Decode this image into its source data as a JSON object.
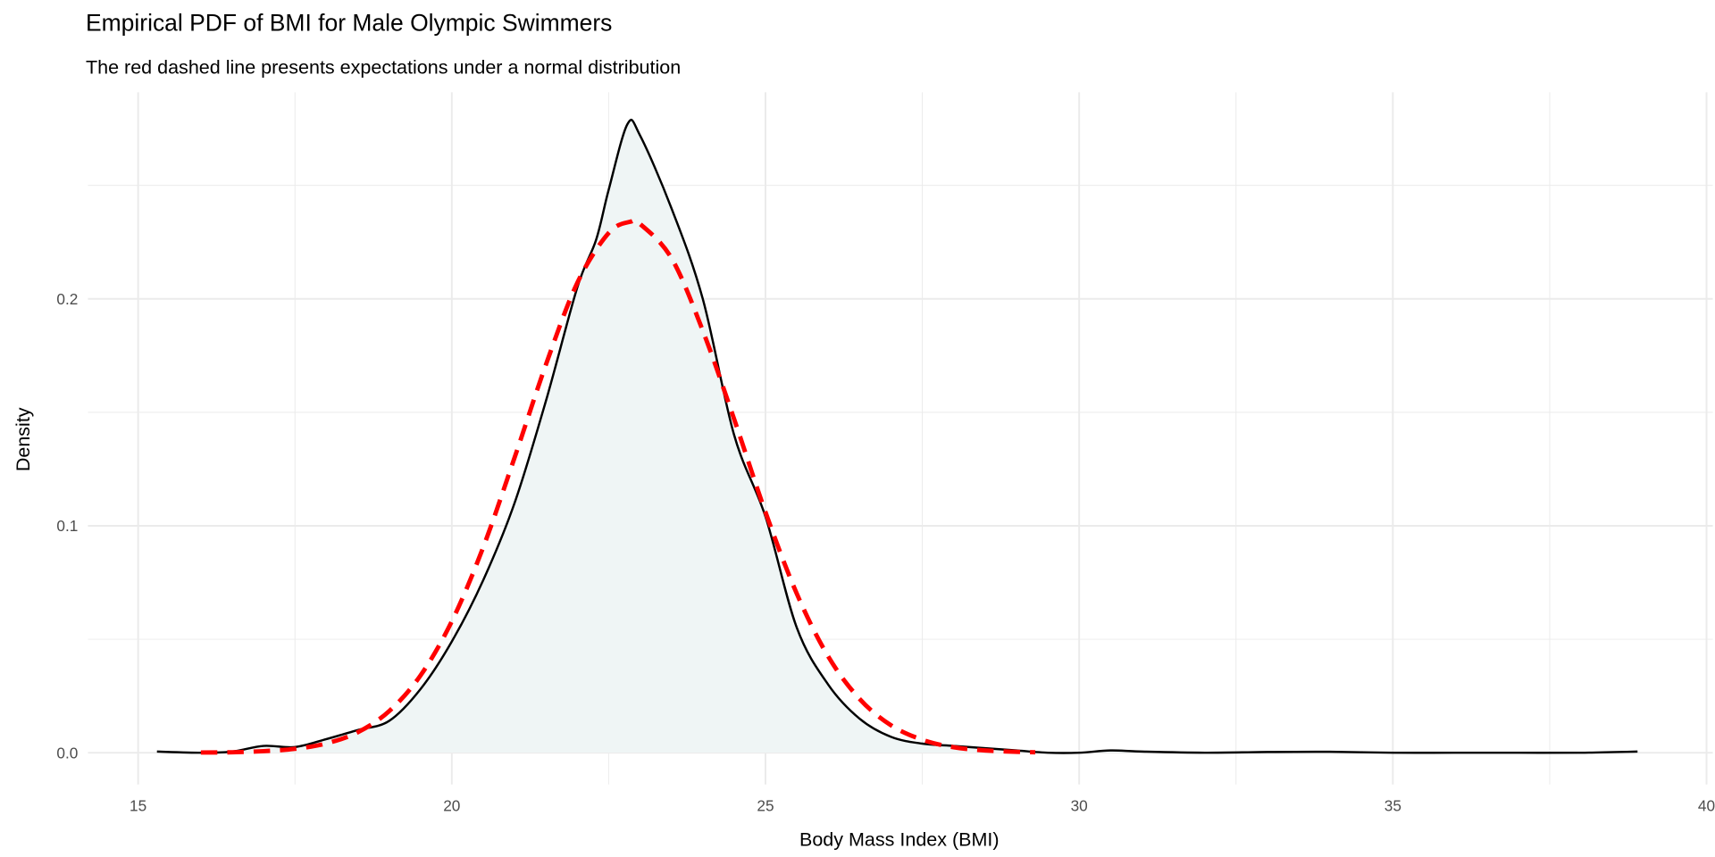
{
  "chart_data": {
    "type": "area",
    "title": "Empirical PDF of BMI for Male Olympic Swimmers",
    "subtitle": "The red dashed line presents expectations under a normal distribution",
    "xlabel": "Body Mass Index (BMI)",
    "ylabel": "Density",
    "xlim": [
      14.2,
      40.1
    ],
    "ylim": [
      -0.014,
      0.291
    ],
    "x_ticks": [
      "15",
      "20",
      "25",
      "30",
      "35",
      "40"
    ],
    "y_ticks": [
      "0.0",
      "0.1",
      "0.2"
    ],
    "grid": true,
    "colors": {
      "density_line": "#000000",
      "density_fill": "#eff5f5",
      "normal_line": "#ff0000",
      "grid": "#ebebeb"
    },
    "series": [
      {
        "style": "solid black line with light fill",
        "x": [
          15.3,
          16,
          16.5,
          17,
          17.5,
          18,
          18.5,
          19,
          19.5,
          20,
          20.5,
          21,
          21.5,
          22,
          22.3,
          22.5,
          22.8,
          23,
          23.5,
          24,
          24.5,
          25,
          25.5,
          26,
          26.5,
          27,
          27.5,
          28,
          28.5,
          29,
          29.5,
          30,
          30.5,
          31,
          32,
          33,
          34,
          35,
          36,
          37,
          38,
          38.9
        ],
        "y": [
          0.0005,
          0.0,
          0.0005,
          0.003,
          0.0025,
          0.006,
          0.01,
          0.014,
          0.028,
          0.049,
          0.076,
          0.11,
          0.155,
          0.205,
          0.226,
          0.248,
          0.277,
          0.272,
          0.24,
          0.2,
          0.14,
          0.104,
          0.055,
          0.03,
          0.015,
          0.007,
          0.004,
          0.003,
          0.002,
          0.001,
          0.0,
          0.0,
          0.001,
          0.0005,
          0.0,
          0.0003,
          0.0004,
          0.0,
          0.0,
          0.0,
          0.0,
          0.0005
        ]
      },
      {
        "style": "red dashed line",
        "x": [
          16,
          16.5,
          17,
          17.5,
          18,
          18.5,
          19,
          19.5,
          20,
          20.5,
          21,
          21.5,
          22,
          22.5,
          22.85,
          23,
          23.5,
          24,
          24.5,
          25,
          25.5,
          26,
          26.5,
          27,
          27.5,
          28,
          28.5,
          29,
          29.3
        ],
        "y": [
          0.0001,
          0.0002,
          0.0007,
          0.0017,
          0.0041,
          0.009,
          0.0183,
          0.034,
          0.0579,
          0.0905,
          0.13,
          0.171,
          0.207,
          0.229,
          0.234,
          0.233,
          0.218,
          0.186,
          0.147,
          0.106,
          0.07,
          0.0424,
          0.0237,
          0.0121,
          0.0057,
          0.0024,
          0.001,
          0.0004,
          0.0002
        ]
      }
    ]
  }
}
